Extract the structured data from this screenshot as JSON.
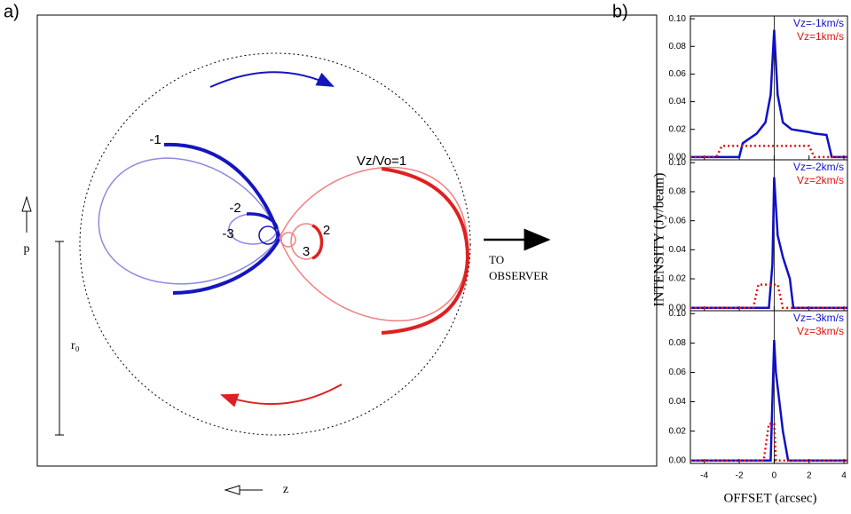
{
  "figure": {
    "panel_a": "a)",
    "panel_b": "b)",
    "ylabel": "INTENSITY (Jy/beam)",
    "xlabel": "OFFSET (arcsec)"
  },
  "diagram": {
    "loop_labels": [
      "-1",
      "-2",
      "-3",
      "Vz/Vo=1",
      "2",
      "3"
    ],
    "observer": [
      "TO",
      "OBSERVER"
    ],
    "p": "p",
    "r0": "r₀",
    "z": "z"
  },
  "chart_data": [
    {
      "type": "line",
      "x": [
        -4.8,
        -3.3,
        -3,
        -2,
        -1.8,
        -1,
        -0.5,
        -0.2,
        0,
        0.2,
        0.5,
        1,
        2,
        2.3,
        3,
        3.3,
        4.2
      ],
      "series": [
        {
          "name": "Vz=-1km/s",
          "color": "#1010c8",
          "values": [
            0,
            0,
            0,
            0,
            0.01,
            0.017,
            0.025,
            0.045,
            0.092,
            0.045,
            0.025,
            0.02,
            0.018,
            0.017,
            0.016,
            0,
            0
          ]
        },
        {
          "name": "Vz=1km/s",
          "color": "#e01010",
          "values": [
            0,
            0,
            0.008,
            0.008,
            0.008,
            0.008,
            0.008,
            0.008,
            0.008,
            0.008,
            0.008,
            0.008,
            0.008,
            0,
            0,
            0,
            0
          ]
        }
      ],
      "xlim": [
        -4.8,
        4.2
      ],
      "ylim": [
        -0.002,
        0.102
      ],
      "xticks": [
        -4,
        -2,
        0,
        2,
        4
      ],
      "yticks": [
        {
          "value": 0,
          "label": "0.00"
        },
        {
          "value": 0.02,
          "label": "0.02"
        },
        {
          "value": 0.04,
          "label": "0.04"
        },
        {
          "value": 0.06,
          "label": "0.06"
        },
        {
          "value": 0.08,
          "label": "0.08"
        },
        {
          "value": 0.1,
          "label": "0.10"
        }
      ]
    },
    {
      "type": "line",
      "x": [
        -4.8,
        -1.2,
        -0.9,
        -0.3,
        -0.1,
        0,
        0.2,
        0.5,
        0.9,
        1.1,
        4.2
      ],
      "series": [
        {
          "name": "Vz=-2km/s",
          "color": "#1010c8",
          "values": [
            0,
            0,
            0,
            0,
            0.03,
            0.09,
            0.05,
            0.035,
            0.02,
            0,
            0
          ]
        },
        {
          "name": "Vz=2km/s",
          "color": "#e01010",
          "values": [
            0,
            0,
            0.016,
            0.016,
            0.016,
            0.016,
            0.016,
            0,
            0,
            0,
            0
          ]
        }
      ],
      "xlim": [
        -4.8,
        4.2
      ],
      "ylim": [
        -0.002,
        0.102
      ],
      "xticks": [
        -4,
        -2,
        0,
        2,
        4
      ],
      "yticks": [
        {
          "value": 0,
          "label": "0.00"
        },
        {
          "value": 0.02,
          "label": "0.02"
        },
        {
          "value": 0.04,
          "label": "0.04"
        },
        {
          "value": 0.06,
          "label": "0.06"
        },
        {
          "value": 0.08,
          "label": "0.08"
        },
        {
          "value": 0.1,
          "label": "0.10"
        }
      ]
    },
    {
      "type": "line",
      "x": [
        -4.8,
        -0.6,
        -0.3,
        -0.2,
        0,
        0.1,
        0.3,
        0.5,
        0.8,
        4.2
      ],
      "series": [
        {
          "name": "Vz=-3km/s",
          "color": "#1010c8",
          "values": [
            0,
            0,
            0,
            0,
            0.082,
            0.06,
            0.04,
            0.02,
            0,
            0
          ]
        },
        {
          "name": "Vz=3km/s",
          "color": "#e01010",
          "values": [
            0,
            0,
            0.025,
            0.025,
            0.025,
            0,
            0,
            0,
            0,
            0
          ]
        }
      ],
      "xlim": [
        -4.8,
        4.2
      ],
      "ylim": [
        -0.002,
        0.102
      ],
      "xticks": [
        -4,
        -2,
        0,
        2,
        4
      ],
      "yticks": [
        {
          "value": 0,
          "label": "0.00"
        },
        {
          "value": 0.02,
          "label": "0.02"
        },
        {
          "value": 0.04,
          "label": "0.04"
        },
        {
          "value": 0.06,
          "label": "0.06"
        },
        {
          "value": 0.08,
          "label": "0.08"
        },
        {
          "value": 0.1,
          "label": "0.10"
        }
      ]
    }
  ]
}
